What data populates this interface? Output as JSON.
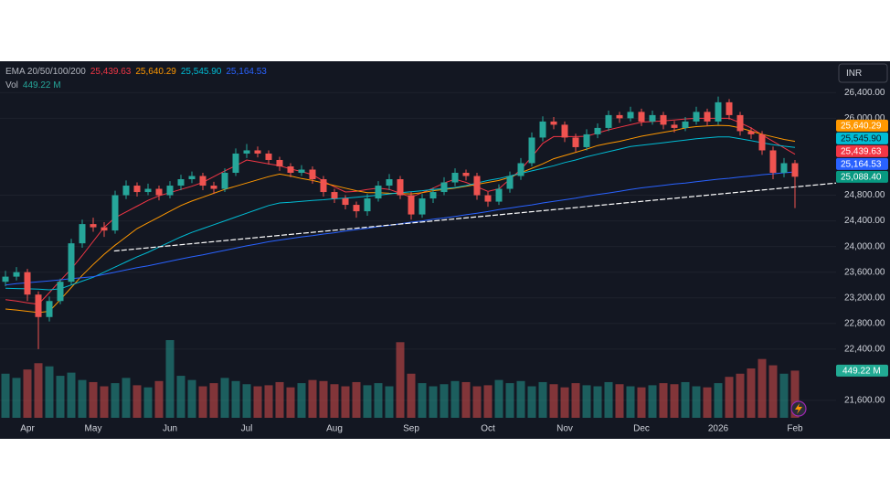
{
  "chart_data": {
    "type": "candlestick",
    "currency": "INR",
    "indicator": "EMA 20/50/100/200",
    "categories": [
      null,
      null,
      "Apr",
      null,
      null,
      null,
      null,
      null,
      "May",
      null,
      null,
      null,
      null,
      null,
      null,
      "Jun",
      null,
      null,
      null,
      null,
      null,
      null,
      "Jul",
      null,
      null,
      null,
      null,
      null,
      null,
      null,
      "Aug",
      null,
      null,
      null,
      null,
      null,
      null,
      "Sep",
      null,
      null,
      null,
      null,
      null,
      null,
      "Oct",
      null,
      null,
      null,
      null,
      null,
      null,
      "Nov",
      null,
      null,
      null,
      null,
      null,
      null,
      "Dec",
      null,
      null,
      null,
      null,
      null,
      null,
      "2026",
      null,
      null,
      null,
      null,
      null,
      null,
      "Feb"
    ],
    "open": [
      23450,
      23530,
      23600,
      23250,
      22900,
      23150,
      23450,
      24050,
      24350,
      24300,
      24250,
      24800,
      24950,
      24850,
      24900,
      24800,
      24950,
      25050,
      25100,
      24950,
      24900,
      25150,
      25450,
      25500,
      25450,
      25350,
      25250,
      25150,
      25200,
      25050,
      24850,
      24750,
      24650,
      24550,
      24750,
      24950,
      25050,
      24800,
      24500,
      24750,
      24850,
      25000,
      25150,
      25100,
      24800,
      24700,
      24900,
      25100,
      25300,
      25700,
      25950,
      25900,
      25700,
      25550,
      25750,
      25850,
      26050,
      26000,
      26100,
      25950,
      26050,
      25900,
      25850,
      25950,
      26100,
      25950,
      26250,
      26050,
      25800,
      25750,
      25500,
      25150,
      25300
    ],
    "high": [
      23620,
      23680,
      23650,
      23300,
      23220,
      23500,
      24120,
      24420,
      24450,
      24380,
      24870,
      25030,
      25000,
      24980,
      24950,
      25020,
      25120,
      25170,
      25150,
      25010,
      25220,
      25530,
      25600,
      25560,
      25500,
      25400,
      25300,
      25270,
      25250,
      25100,
      24900,
      24800,
      24700,
      24820,
      25020,
      25130,
      25100,
      24850,
      24820,
      24920,
      25080,
      25220,
      25200,
      25150,
      24850,
      24970,
      25170,
      25380,
      25780,
      26030,
      26020,
      25950,
      25760,
      25830,
      25920,
      26120,
      26100,
      26180,
      26150,
      26120,
      26100,
      25960,
      26020,
      26180,
      26150,
      26340,
      26300,
      26100,
      25860,
      25800,
      25560,
      25380,
      25350
    ],
    "low": [
      23380,
      23470,
      23150,
      22400,
      22830,
      23100,
      23400,
      23980,
      24230,
      24150,
      24200,
      24740,
      24780,
      24800,
      24720,
      24750,
      24880,
      24990,
      24880,
      24820,
      24850,
      25100,
      25380,
      25390,
      25280,
      25180,
      25080,
      25100,
      24980,
      24780,
      24680,
      24580,
      24450,
      24480,
      24700,
      24880,
      24740,
      24420,
      24450,
      24680,
      24800,
      24940,
      25030,
      24730,
      24620,
      24650,
      24840,
      25040,
      25250,
      25640,
      25830,
      25630,
      25480,
      25500,
      25690,
      25800,
      25930,
      25950,
      25880,
      25900,
      25830,
      25780,
      25800,
      25900,
      25880,
      25900,
      25980,
      25730,
      25680,
      25430,
      25050,
      25080,
      24600
    ],
    "close": [
      23530,
      23600,
      23250,
      22900,
      23150,
      23450,
      24050,
      24350,
      24300,
      24250,
      24800,
      24950,
      24850,
      24900,
      24800,
      24950,
      25050,
      25100,
      24950,
      24900,
      25150,
      25450,
      25500,
      25450,
      25350,
      25250,
      25150,
      25200,
      25050,
      24850,
      24750,
      24650,
      24550,
      24750,
      24950,
      25050,
      24800,
      24500,
      24750,
      24850,
      25000,
      25150,
      25100,
      24800,
      24700,
      24900,
      25100,
      25300,
      25700,
      25950,
      25900,
      25700,
      25550,
      25750,
      25850,
      26050,
      26000,
      26100,
      25950,
      26050,
      25900,
      25850,
      25950,
      26100,
      25950,
      26250,
      26050,
      25800,
      25750,
      25500,
      25150,
      25300,
      25088.4
    ],
    "last_label": "25,088.40",
    "up_color": "#26a69a",
    "down_color": "#ef5350",
    "last_color": "#089981",
    "volume": {
      "name": "Vol",
      "color_up": "#26a69a",
      "color_down": "#ef5350",
      "last_label": "449.22 M",
      "values": [
        420,
        380,
        460,
        520,
        490,
        400,
        430,
        360,
        340,
        300,
        330,
        380,
        310,
        290,
        350,
        740,
        400,
        360,
        300,
        330,
        380,
        350,
        320,
        300,
        310,
        340,
        290,
        330,
        360,
        350,
        320,
        300,
        340,
        310,
        330,
        300,
        720,
        420,
        330,
        300,
        320,
        350,
        340,
        300,
        310,
        360,
        330,
        350,
        300,
        340,
        320,
        290,
        330,
        310,
        300,
        340,
        320,
        300,
        290,
        310,
        330,
        320,
        340,
        300,
        290,
        330,
        390,
        420,
        470,
        560,
        500,
        420,
        449.22
      ]
    },
    "series": [
      {
        "color": "#f23645",
        "last_label": "25,439.63",
        "values": [
          23170,
          23150,
          23120,
          23100,
          23280,
          23470,
          23650,
          23860,
          24080,
          24300,
          24450,
          24540,
          24630,
          24720,
          24790,
          24840,
          24890,
          24940,
          25000,
          25090,
          25180,
          25260,
          25350,
          25320,
          25290,
          25260,
          25210,
          25170,
          25120,
          25020,
          24930,
          24850,
          24860,
          24890,
          24910,
          24890,
          24830,
          24770,
          24840,
          24910,
          24990,
          25050,
          25000,
          24930,
          24860,
          24900,
          25050,
          25200,
          25400,
          25610,
          25715,
          25715,
          25715,
          25720,
          25770,
          25820,
          25860,
          25900,
          25940,
          25950,
          25960,
          25975,
          25990,
          26000,
          26000,
          26000,
          26000,
          25930,
          25850,
          25740,
          25640,
          25540,
          25439.63
        ]
      },
      {
        "color": "#ff9800",
        "last_label": "25,640.29",
        "values": [
          23025,
          23010,
          22990,
          22970,
          22990,
          23170,
          23360,
          23550,
          23720,
          23880,
          24020,
          24150,
          24280,
          24370,
          24460,
          24550,
          24640,
          24710,
          24770,
          24830,
          24890,
          24940,
          24990,
          25040,
          25090,
          25130,
          25100,
          25060,
          25030,
          24990,
          24950,
          24910,
          24870,
          24840,
          24840,
          24830,
          24825,
          24820,
          24840,
          24870,
          24890,
          24910,
          24940,
          24970,
          25000,
          25030,
          25080,
          25150,
          25220,
          25290,
          25370,
          25420,
          25470,
          25520,
          25575,
          25610,
          25640,
          25680,
          25720,
          25750,
          25780,
          25810,
          25850,
          25870,
          25880,
          25890,
          25885,
          25850,
          25800,
          25750,
          25710,
          25670,
          25640.29
        ]
      },
      {
        "color": "#00bcd4",
        "last_label": "25,545.90",
        "values": [
          23350,
          23345,
          23340,
          23335,
          23325,
          23340,
          23400,
          23460,
          23520,
          23600,
          23680,
          23760,
          23840,
          23910,
          23990,
          24070,
          24150,
          24220,
          24280,
          24340,
          24400,
          24460,
          24520,
          24580,
          24640,
          24680,
          24690,
          24705,
          24720,
          24730,
          24745,
          24755,
          24770,
          24785,
          24800,
          24820,
          24840,
          24855,
          24870,
          24890,
          24905,
          24920,
          24950,
          24990,
          25030,
          25060,
          25100,
          25140,
          25180,
          25220,
          25260,
          25310,
          25350,
          25400,
          25440,
          25480,
          25520,
          25560,
          25580,
          25600,
          25620,
          25640,
          25660,
          25680,
          25695,
          25710,
          25710,
          25680,
          25650,
          25620,
          25590,
          25565,
          25545.9
        ]
      },
      {
        "color": "#2962ff",
        "last_label": "25,164.53",
        "values": [
          23400,
          23420,
          23435,
          23450,
          23465,
          23480,
          23500,
          23515,
          23530,
          23565,
          23600,
          23635,
          23670,
          23700,
          23735,
          23770,
          23805,
          23840,
          23870,
          23905,
          23940,
          23975,
          24010,
          24040,
          24075,
          24100,
          24125,
          24150,
          24170,
          24195,
          24215,
          24240,
          24265,
          24285,
          24310,
          24330,
          24355,
          24380,
          24400,
          24425,
          24445,
          24470,
          24495,
          24520,
          24545,
          24575,
          24600,
          24625,
          24650,
          24680,
          24705,
          24730,
          24755,
          24785,
          24810,
          24835,
          24860,
          24890,
          24915,
          24935,
          24955,
          24975,
          24990,
          25010,
          25030,
          25050,
          25065,
          25085,
          25100,
          25120,
          25135,
          25150,
          25164.53
        ]
      }
    ],
    "trendline": {
      "color": "#ffffff",
      "x": [
        9.9,
        75.75
      ],
      "y": [
        23930,
        24990
      ]
    },
    "ylim": [
      21000,
      26890
    ],
    "yticks": [
      {
        "value": 26400,
        "label": "26,400.00"
      },
      {
        "value": 26000,
        "label": "26,000.00"
      },
      {
        "value": 24800,
        "label": "24,800.00"
      },
      {
        "value": 24400,
        "label": "24,400.00"
      },
      {
        "value": 24000,
        "label": "24,000.00"
      },
      {
        "value": 23600,
        "label": "23,600.00"
      },
      {
        "value": 23200,
        "label": "23,200.00"
      },
      {
        "value": 22800,
        "label": "22,800.00"
      },
      {
        "value": 22400,
        "label": "22,400.00"
      },
      {
        "value": 21600,
        "label": "21,600.00"
      }
    ],
    "grid": true
  }
}
